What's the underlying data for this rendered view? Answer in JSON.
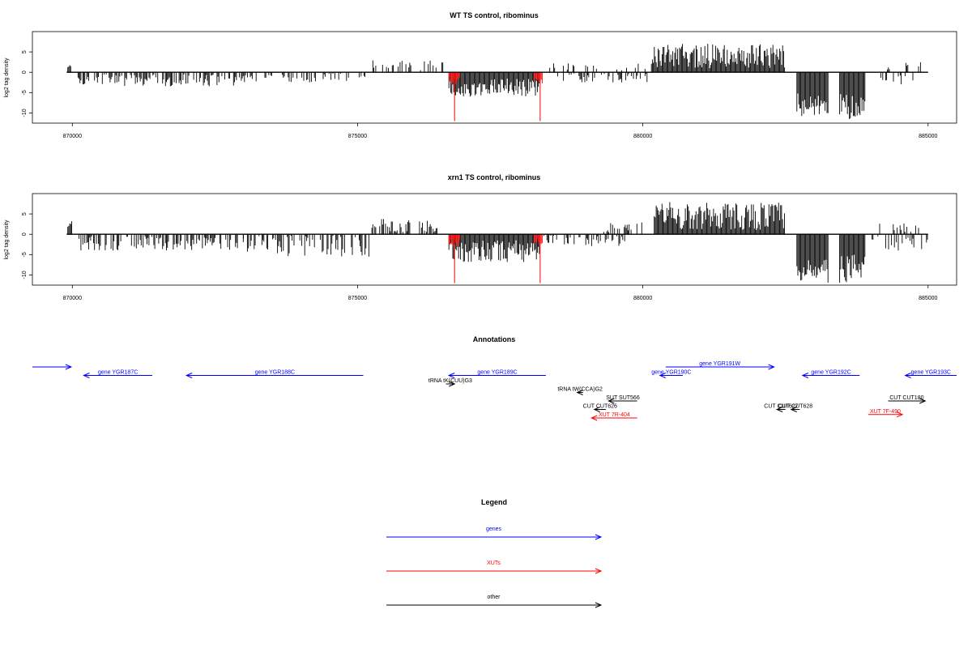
{
  "panels": [
    {
      "title": "WT TS control, ribominus",
      "ylabel": "log2 tag density",
      "chart_data": {
        "type": "bar",
        "xlim": [
          869300,
          885500
        ],
        "ylim": [
          -12.5,
          10
        ],
        "yticks": [
          -10,
          -5,
          0,
          5
        ],
        "xticks": [
          870000,
          875000,
          880000,
          885000
        ],
        "baseline": 0,
        "track_range": [
          869900,
          885000
        ],
        "red_marks": [
          {
            "x": 876700,
            "y": -12
          },
          {
            "x": 878200,
            "y": -12
          }
        ],
        "segments": [
          {
            "from": 869920,
            "to": 869980,
            "min": 1,
            "max": 2,
            "sign": 1
          },
          {
            "from": 870100,
            "to": 873000,
            "min": 0.5,
            "max": 3.5,
            "sign": -1,
            "density": 0.55
          },
          {
            "from": 873000,
            "to": 875200,
            "min": 0.3,
            "max": 2.5,
            "sign": -1,
            "density": 0.35
          },
          {
            "from": 875200,
            "to": 876500,
            "min": 0.5,
            "max": 3,
            "sign": 1,
            "density": 0.2
          },
          {
            "from": 876600,
            "to": 878200,
            "min": 1.5,
            "max": 6,
            "sign": -1,
            "density": 1.0
          },
          {
            "from": 876600,
            "to": 876800,
            "min": 1,
            "max": 3,
            "sign": -1,
            "density": 1.0,
            "color": "#ff0000"
          },
          {
            "from": 878100,
            "to": 878250,
            "min": 1,
            "max": 3,
            "sign": -1,
            "density": 1.0,
            "color": "#ff0000"
          },
          {
            "from": 878250,
            "to": 880100,
            "min": 0.3,
            "max": 2.5,
            "sign": -1,
            "density": 0.35
          },
          {
            "from": 878300,
            "to": 880100,
            "min": 0.5,
            "max": 2.5,
            "sign": 1,
            "density": 0.15
          },
          {
            "from": 880150,
            "to": 882500,
            "min": 1,
            "max": 7,
            "sign": 1,
            "density": 1.0
          },
          {
            "from": 882700,
            "to": 883250,
            "min": 5,
            "max": 11,
            "sign": -1,
            "density": 1.0
          },
          {
            "from": 883450,
            "to": 883900,
            "min": 5,
            "max": 11.5,
            "sign": -1,
            "density": 1.0
          },
          {
            "from": 884000,
            "to": 885000,
            "min": 0.5,
            "max": 3,
            "sign": -1,
            "density": 0.3
          },
          {
            "from": 884100,
            "to": 884900,
            "min": 0.5,
            "max": 2.5,
            "sign": 1,
            "density": 0.15
          }
        ]
      }
    },
    {
      "title": "xrn1 TS control, ribominus",
      "ylabel": "log2 tag density",
      "chart_data": {
        "type": "bar",
        "xlim": [
          869300,
          885500
        ],
        "ylim": [
          -12.5,
          10
        ],
        "yticks": [
          -10,
          -5,
          0,
          5
        ],
        "xticks": [
          870000,
          875000,
          880000,
          885000
        ],
        "baseline": 0,
        "track_range": [
          869900,
          885000
        ],
        "red_marks": [
          {
            "x": 876700,
            "y": -12
          },
          {
            "x": 878200,
            "y": -12
          }
        ],
        "segments": [
          {
            "from": 869920,
            "to": 870000,
            "min": 1,
            "max": 3.5,
            "sign": 1,
            "density": 1.0
          },
          {
            "from": 870100,
            "to": 873000,
            "min": 0.5,
            "max": 4,
            "sign": -1,
            "density": 0.6
          },
          {
            "from": 873000,
            "to": 875200,
            "min": 0.3,
            "max": 5.5,
            "sign": -1,
            "density": 0.45
          },
          {
            "from": 875250,
            "to": 876400,
            "min": 0.5,
            "max": 4,
            "sign": 1,
            "density": 0.55
          },
          {
            "from": 876600,
            "to": 878200,
            "min": 1.5,
            "max": 7,
            "sign": -1,
            "density": 1.0
          },
          {
            "from": 876600,
            "to": 876800,
            "min": 1,
            "max": 3,
            "sign": -1,
            "density": 1.0,
            "color": "#ff0000"
          },
          {
            "from": 878100,
            "to": 878250,
            "min": 1,
            "max": 3,
            "sign": -1,
            "density": 1.0,
            "color": "#ff0000"
          },
          {
            "from": 878250,
            "to": 879700,
            "min": 0.3,
            "max": 3,
            "sign": -1,
            "density": 0.4
          },
          {
            "from": 879300,
            "to": 880100,
            "min": 0.5,
            "max": 3,
            "sign": 1,
            "density": 0.3
          },
          {
            "from": 880200,
            "to": 882500,
            "min": 1,
            "max": 8,
            "sign": 1,
            "density": 1.0
          },
          {
            "from": 882700,
            "to": 883250,
            "min": 5,
            "max": 12,
            "sign": -1,
            "density": 1.0
          },
          {
            "from": 883450,
            "to": 883900,
            "min": 5,
            "max": 12,
            "sign": -1,
            "density": 1.0
          },
          {
            "from": 884000,
            "to": 885000,
            "min": 0.5,
            "max": 4,
            "sign": -1,
            "density": 0.35
          },
          {
            "from": 884100,
            "to": 884900,
            "min": 0.5,
            "max": 3,
            "sign": 1,
            "density": 0.25
          }
        ]
      }
    }
  ],
  "annotations": {
    "title": "Annotations",
    "xlim": [
      869300,
      885500
    ],
    "features": [
      {
        "label": "",
        "start": 869300,
        "end": 869980,
        "strand": "+",
        "color": "#0000ff",
        "row": 0
      },
      {
        "label": "gene YGR187C",
        "start": 870200,
        "end": 871400,
        "strand": "-",
        "color": "#0000ff",
        "row": 1
      },
      {
        "label": "gene YGR188C",
        "start": 872000,
        "end": 875100,
        "strand": "-",
        "color": "#0000ff",
        "row": 1
      },
      {
        "label": "gene YGR189C",
        "start": 876600,
        "end": 878300,
        "strand": "-",
        "color": "#0000ff",
        "row": 1
      },
      {
        "label": "tRNA tK(CUU)G3",
        "start": 876550,
        "end": 876700,
        "strand": "+",
        "color": "#000000",
        "row": 2
      },
      {
        "label": "tRNA tW(CCA)G2",
        "start": 878850,
        "end": 878950,
        "strand": "-",
        "color": "#000000",
        "row": 3
      },
      {
        "label": "gene YGR190C",
        "start": 880300,
        "end": 880700,
        "strand": "-",
        "color": "#0000ff",
        "row": 1
      },
      {
        "label": "gene YGR191W",
        "start": 880400,
        "end": 882300,
        "strand": "+",
        "color": "#0000ff",
        "row": 0
      },
      {
        "label": "gene YGR192C",
        "start": 882800,
        "end": 883800,
        "strand": "-",
        "color": "#0000ff",
        "row": 1
      },
      {
        "label": "gene YGR193C",
        "start": 884600,
        "end": 885500,
        "strand": "-",
        "color": "#0000ff",
        "row": 1
      },
      {
        "label": "SUT SUT566",
        "start": 879400,
        "end": 879900,
        "strand": "-",
        "color": "#000000",
        "row": 4
      },
      {
        "label": "CUT CUT626",
        "start": 879150,
        "end": 879350,
        "strand": "-",
        "color": "#000000",
        "row": 5
      },
      {
        "label": "XUT 7R-404",
        "start": 879100,
        "end": 879900,
        "strand": "-",
        "color": "#ff0000",
        "row": 6
      },
      {
        "label": "CUT CUT627",
        "start": 882350,
        "end": 882500,
        "strand": "-",
        "color": "#000000",
        "row": 5
      },
      {
        "label": "CUT CUT628",
        "start": 882600,
        "end": 882750,
        "strand": "-",
        "color": "#000000",
        "row": 5
      },
      {
        "label": "CUT CUT180",
        "start": 884300,
        "end": 884950,
        "strand": "+",
        "color": "#000000",
        "row": 4
      },
      {
        "label": "XUT 7F-490",
        "start": 883950,
        "end": 884550,
        "strand": "+",
        "color": "#ff0000",
        "row": 5.6
      }
    ]
  },
  "legend": {
    "title": "Legend",
    "items": [
      {
        "label": "genes",
        "color": "#0000ff"
      },
      {
        "label": "XUTs",
        "color": "#ff0000"
      },
      {
        "label": "other",
        "color": "#000000"
      }
    ]
  }
}
